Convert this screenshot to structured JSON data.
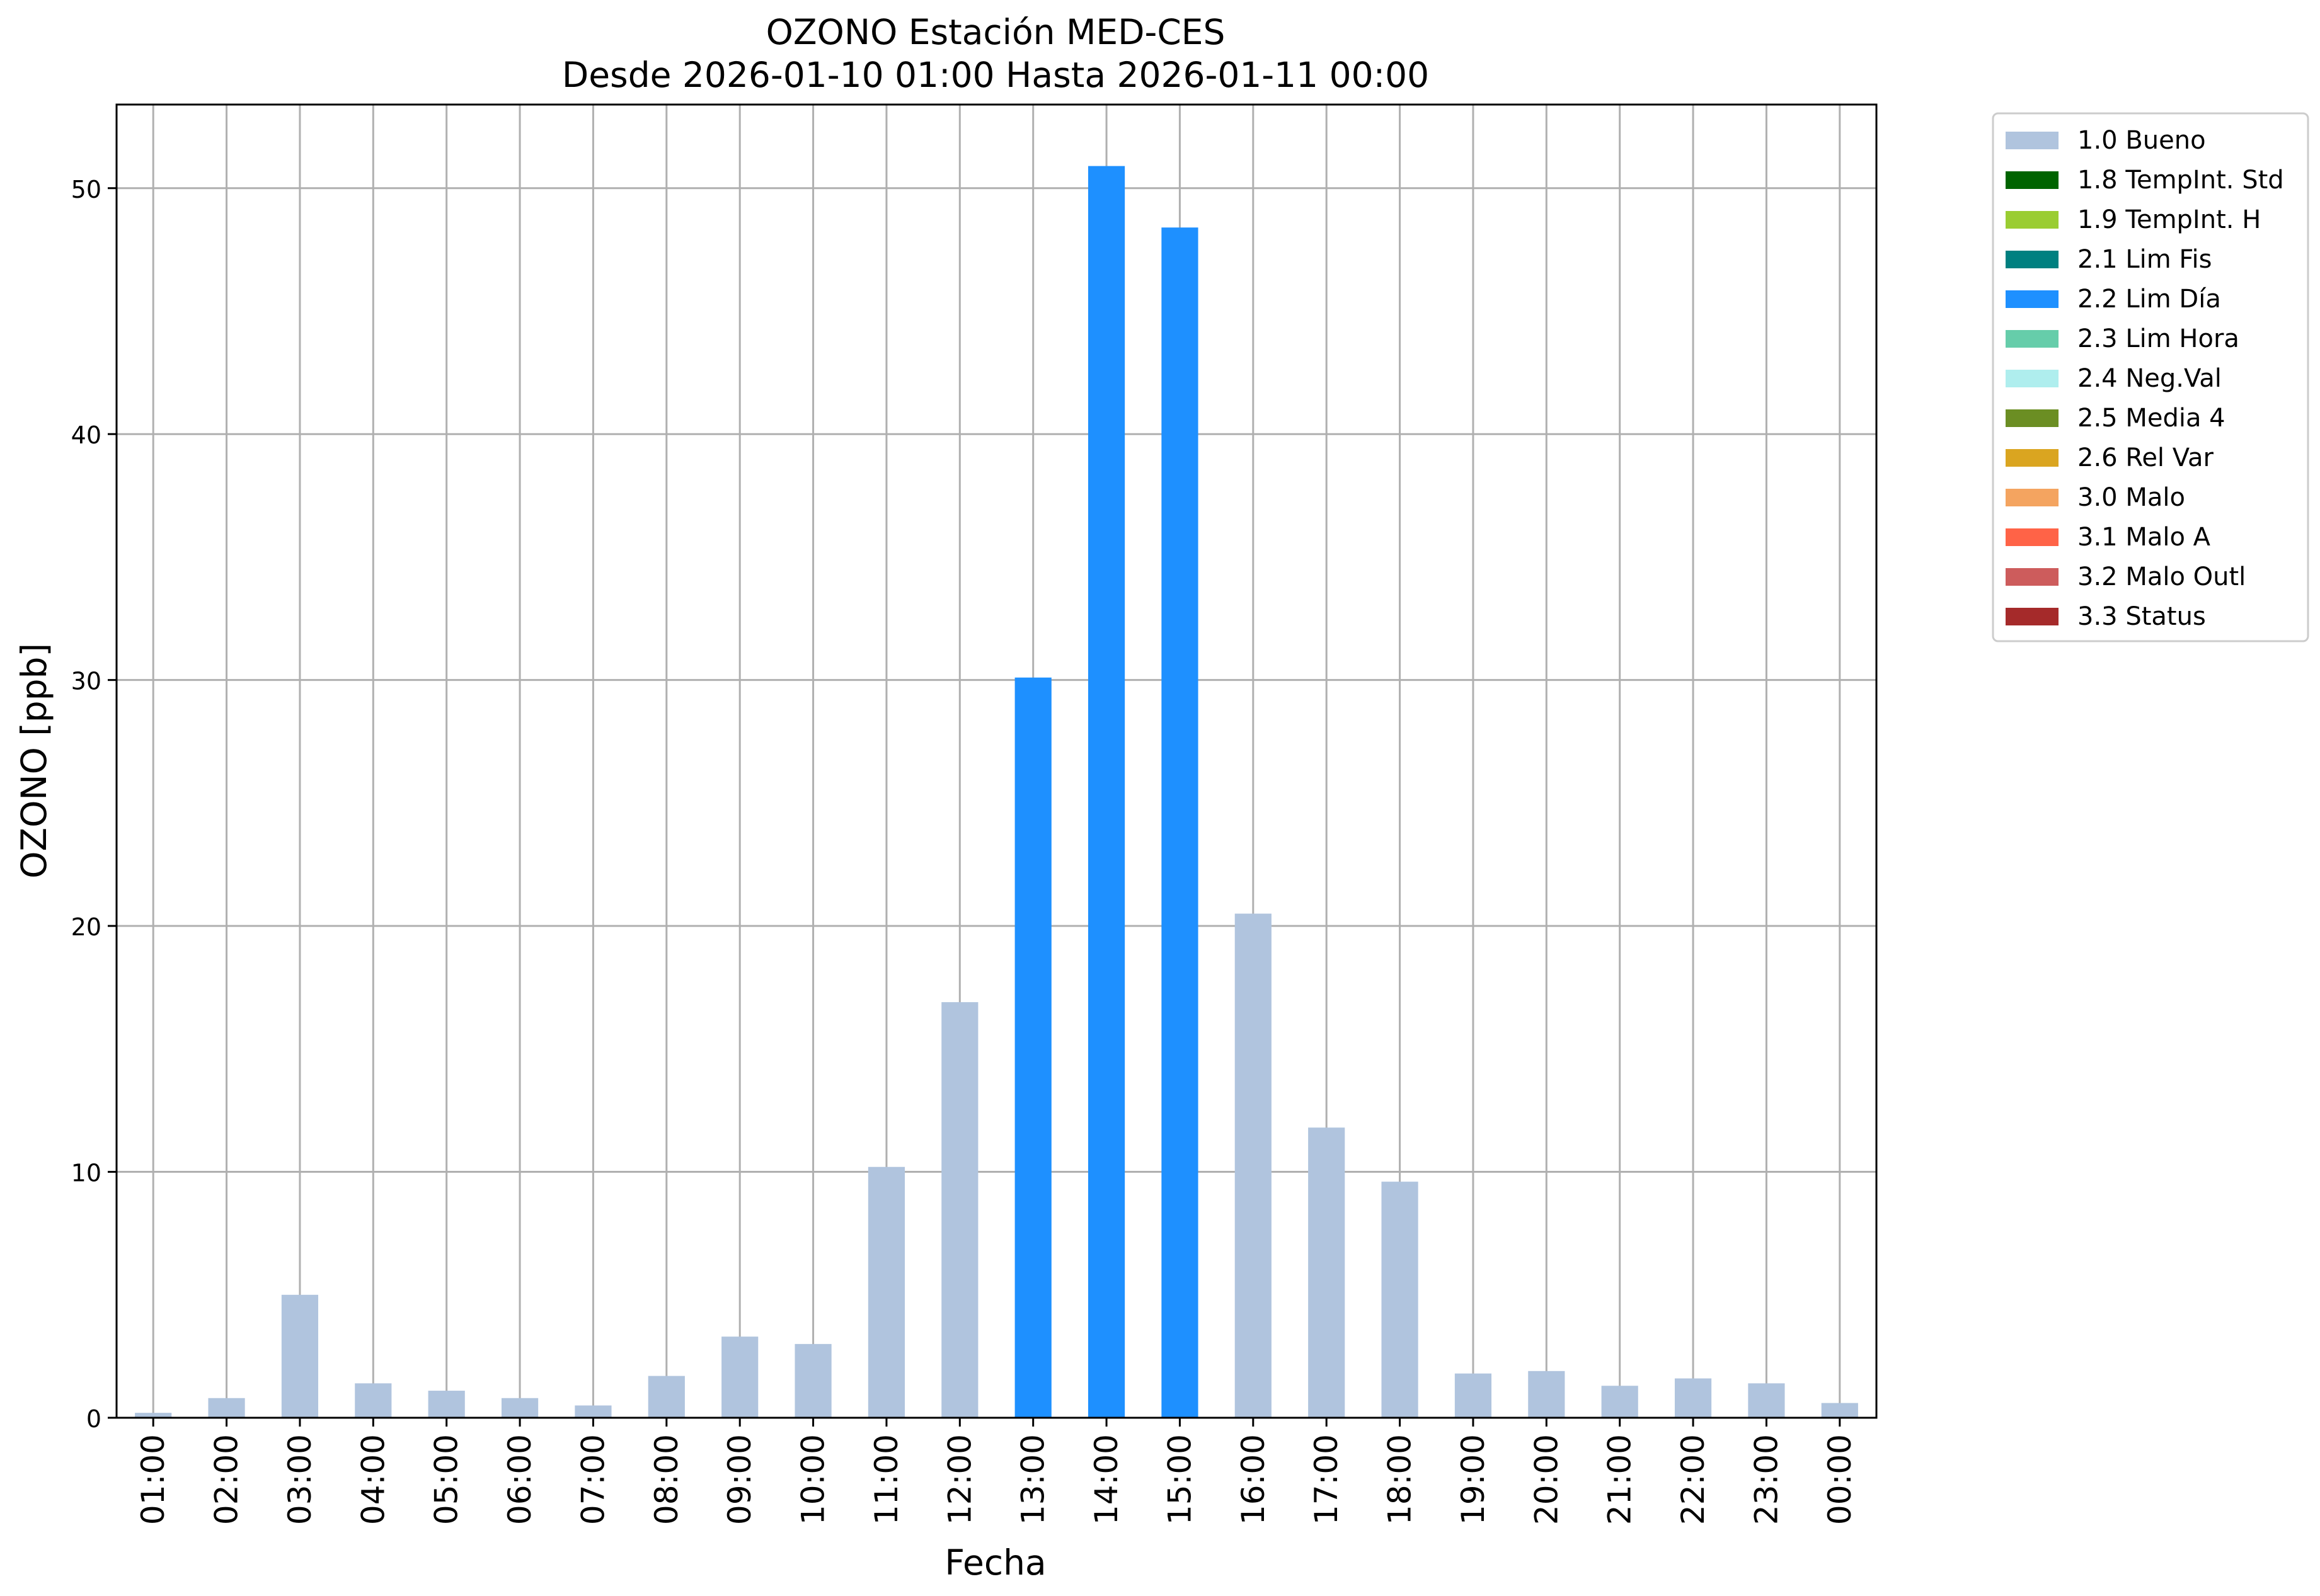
{
  "chart_data": {
    "type": "bar",
    "title": "OZONO Estación MED-CES",
    "subtitle": "Desde 2026-01-10 01:00 Hasta 2026-01-11 00:00",
    "xlabel": "Fecha",
    "ylabel": "OZONO [ppb]",
    "ylim": [
      0,
      53.4
    ],
    "yticks": [
      0,
      10,
      20,
      30,
      40,
      50
    ],
    "grid": true,
    "legend_position": "outside-top-right",
    "categories": [
      "01:00",
      "02:00",
      "03:00",
      "04:00",
      "05:00",
      "06:00",
      "07:00",
      "08:00",
      "09:00",
      "10:00",
      "11:00",
      "12:00",
      "13:00",
      "14:00",
      "15:00",
      "16:00",
      "17:00",
      "18:00",
      "19:00",
      "20:00",
      "21:00",
      "22:00",
      "23:00",
      "00:00"
    ],
    "values": [
      0.2,
      0.8,
      5.0,
      1.4,
      1.1,
      0.8,
      0.5,
      1.7,
      3.3,
      3.0,
      10.2,
      16.9,
      30.1,
      50.9,
      48.4,
      20.5,
      11.8,
      9.6,
      1.8,
      1.9,
      1.3,
      1.6,
      1.4,
      0.6
    ],
    "flags": [
      "1.0 Bueno",
      "1.0 Bueno",
      "1.0 Bueno",
      "1.0 Bueno",
      "1.0 Bueno",
      "1.0 Bueno",
      "1.0 Bueno",
      "1.0 Bueno",
      "1.0 Bueno",
      "1.0 Bueno",
      "1.0 Bueno",
      "1.0 Bueno",
      "2.2 Lim Día",
      "2.2 Lim Día",
      "2.2 Lim Día",
      "1.0 Bueno",
      "1.0 Bueno",
      "1.0 Bueno",
      "1.0 Bueno",
      "1.0 Bueno",
      "1.0 Bueno",
      "1.0 Bueno",
      "1.0 Bueno",
      "1.0 Bueno"
    ],
    "legend": [
      {
        "label": "1.0 Bueno",
        "color": "#b0c4de"
      },
      {
        "label": "1.8 TempInt. Std",
        "color": "#006400"
      },
      {
        "label": "1.9 TempInt. H",
        "color": "#9acd32"
      },
      {
        "label": "2.1 Lim Fis",
        "color": "#008080"
      },
      {
        "label": "2.2 Lim Día",
        "color": "#1e90ff"
      },
      {
        "label": "2.3 Lim Hora",
        "color": "#66cdaa"
      },
      {
        "label": "2.4 Neg.Val",
        "color": "#afeeee"
      },
      {
        "label": "2.5 Media 4",
        "color": "#6b8e23"
      },
      {
        "label": "2.6 Rel Var",
        "color": "#daa520"
      },
      {
        "label": "3.0 Malo",
        "color": "#f4a460"
      },
      {
        "label": "3.1 Malo A",
        "color": "#ff6347"
      },
      {
        "label": "3.2 Malo Outl",
        "color": "#cd5c5c"
      },
      {
        "label": "3.3 Status",
        "color": "#a52a2a"
      }
    ]
  }
}
